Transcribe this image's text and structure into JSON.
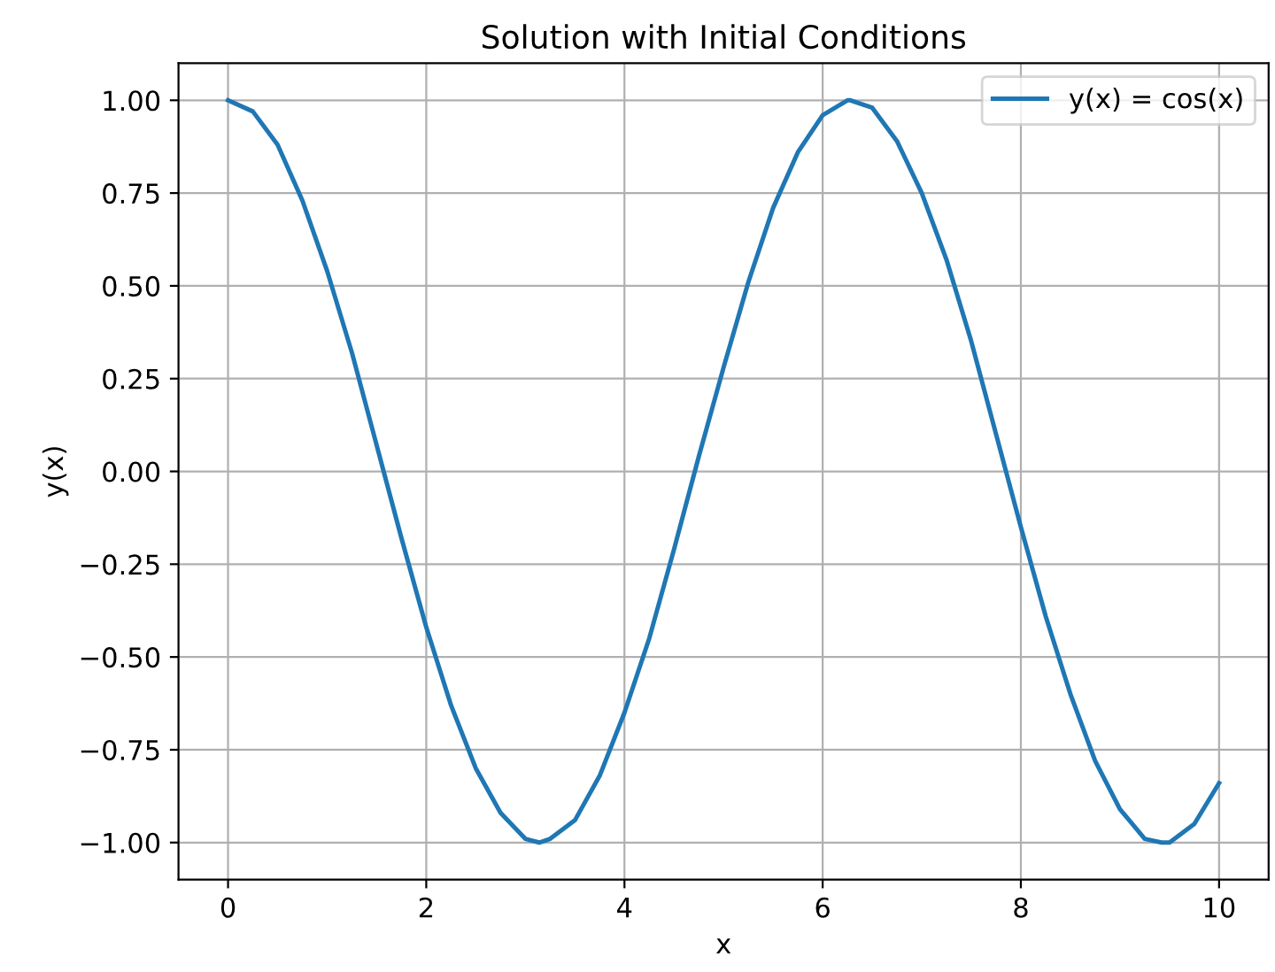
{
  "chart_data": {
    "type": "line",
    "title": "Solution with Initial Conditions",
    "xlabel": "x",
    "ylabel": "y(x)",
    "series": [
      {
        "name": "y(x) = cos(x)",
        "color": "#1f77b4",
        "x": [
          0,
          0.25,
          0.5,
          0.75,
          1,
          1.25,
          1.5,
          1.75,
          2,
          2.25,
          2.5,
          2.75,
          3,
          3.14,
          3.25,
          3.5,
          3.75,
          4,
          4.25,
          4.5,
          4.75,
          5,
          5.25,
          5.5,
          5.75,
          6,
          6.25,
          6.28,
          6.5,
          6.75,
          7,
          7.25,
          7.5,
          7.75,
          8,
          8.25,
          8.5,
          8.75,
          9,
          9.25,
          9.42,
          9.5,
          9.75,
          10
        ],
        "values": [
          1.0,
          0.97,
          0.88,
          0.73,
          0.54,
          0.32,
          0.07,
          -0.18,
          -0.42,
          -0.63,
          -0.8,
          -0.92,
          -0.99,
          -1.0,
          -0.99,
          -0.94,
          -0.82,
          -0.65,
          -0.45,
          -0.21,
          0.04,
          0.28,
          0.51,
          0.71,
          0.86,
          0.96,
          1.0,
          1.0,
          0.98,
          0.89,
          0.75,
          0.57,
          0.35,
          0.1,
          -0.15,
          -0.39,
          -0.6,
          -0.78,
          -0.91,
          -0.99,
          -1.0,
          -1.0,
          -0.95,
          -0.84
        ]
      }
    ],
    "xlim": [
      -0.5,
      10.5
    ],
    "xticks": [
      0,
      2,
      4,
      6,
      8,
      10
    ],
    "ylim": [
      -1.1,
      1.1
    ],
    "yticks": [
      {
        "value": -1,
        "label": "−1.00"
      },
      {
        "value": -0.75,
        "label": "−0.75"
      },
      {
        "value": -0.5,
        "label": "−0.50"
      },
      {
        "value": -0.25,
        "label": "−0.25"
      },
      {
        "value": 0,
        "label": "0.00"
      },
      {
        "value": 0.25,
        "label": "0.25"
      },
      {
        "value": 0.5,
        "label": "0.50"
      },
      {
        "value": 0.75,
        "label": "0.75"
      },
      {
        "value": 1,
        "label": "1.00"
      }
    ],
    "grid": true,
    "legend": "top right",
    "marker": "none",
    "line_style": "solid"
  }
}
